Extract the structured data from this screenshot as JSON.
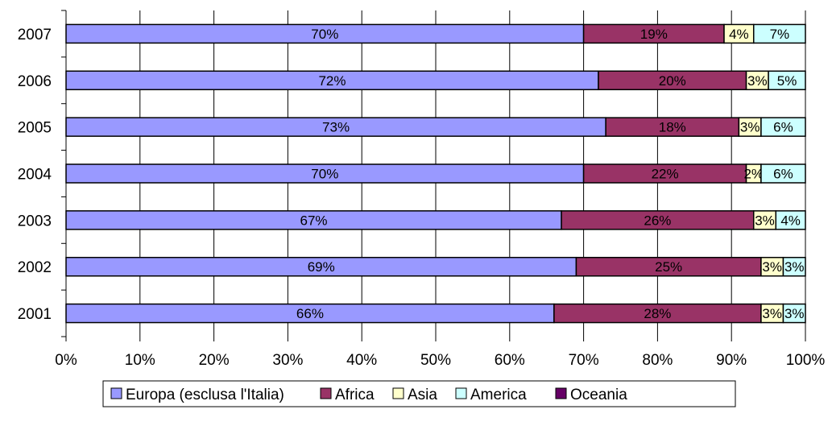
{
  "chart_data": {
    "type": "bar",
    "orientation": "horizontal",
    "stacked": "percent",
    "title": "",
    "xlabel": "",
    "ylabel": "",
    "xlim": [
      0,
      100
    ],
    "x_ticks": [
      "0%",
      "10%",
      "20%",
      "30%",
      "40%",
      "50%",
      "60%",
      "70%",
      "80%",
      "90%",
      "100%"
    ],
    "grid": "vertical",
    "legend_position": "bottom",
    "categories": [
      "2007",
      "2006",
      "2005",
      "2004",
      "2003",
      "2002",
      "2001"
    ],
    "series": [
      {
        "name": "Europa (esclusa l'Italia)",
        "color": "#9999ff",
        "values": [
          70,
          72,
          73,
          70,
          67,
          69,
          66
        ],
        "labels": [
          "70%",
          "72%",
          "73%",
          "70%",
          "67%",
          "69%",
          "66%"
        ]
      },
      {
        "name": "Africa",
        "color": "#993366",
        "values": [
          19,
          20,
          18,
          22,
          26,
          25,
          28
        ],
        "labels": [
          "19%",
          "20%",
          "18%",
          "22%",
          "26%",
          "25%",
          "28%"
        ]
      },
      {
        "name": "Asia",
        "color": "#ffffcc",
        "values": [
          4,
          3,
          3,
          2,
          3,
          3,
          3
        ],
        "labels": [
          "4%",
          "3%",
          "3%",
          "2%",
          "3%",
          "3%",
          "3%"
        ]
      },
      {
        "name": "America",
        "color": "#ccffff",
        "values": [
          7,
          5,
          6,
          6,
          4,
          3,
          3
        ],
        "labels": [
          "7%",
          "5%",
          "6%",
          "6%",
          "4%",
          "3%",
          "3%"
        ]
      },
      {
        "name": "Oceania",
        "color": "#660066",
        "values": [
          0,
          0,
          0,
          0,
          0,
          0,
          0
        ],
        "labels": [
          "",
          "",
          "",
          "",
          "",
          "",
          ""
        ]
      }
    ]
  }
}
